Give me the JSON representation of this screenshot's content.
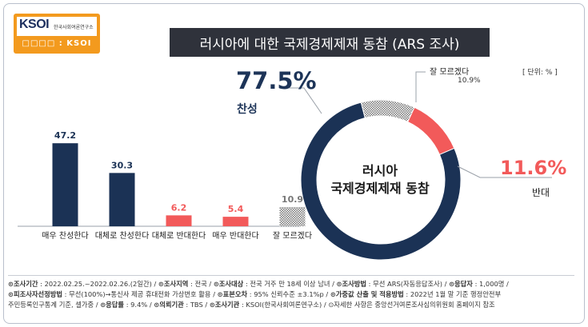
{
  "logo": {
    "mark": "KSOI",
    "org_name": "한국사회여론연구소",
    "bottom": "□□□□ : KSOI"
  },
  "title": "러시아에 대한 국제경제제재 동참 (ARS 조사)",
  "unit": "[ 단위: % ]",
  "colors": {
    "navy": "#1b3255",
    "red": "#f25a5a",
    "gray": "#9a9a9a",
    "title_bg": "#2f323b",
    "accent": "#f39a1e"
  },
  "chart_data": [
    {
      "type": "bar",
      "categories": [
        "매우 찬성한다",
        "대체로 찬성한다",
        "대체로 반대한다",
        "매우 반대한다",
        "잘 모르겠다"
      ],
      "values": [
        47.2,
        30.3,
        6.2,
        5.4,
        10.9
      ],
      "value_labels": [
        "47.2",
        "30.3",
        "6.2",
        "5.4",
        "10.9"
      ],
      "bar_colors": [
        "#1b3255",
        "#1b3255",
        "#f25a5a",
        "#f25a5a",
        "hatched-gray"
      ],
      "ylim": [
        0,
        50
      ]
    },
    {
      "type": "pie",
      "center_label": [
        "러시아",
        "국제경제제재 동참"
      ],
      "slices": [
        {
          "name": "찬성",
          "value": 77.5,
          "label": "77.5%",
          "color": "#1b3255"
        },
        {
          "name": "반대",
          "value": 11.6,
          "label": "11.6%",
          "color": "#f25a5a"
        },
        {
          "name": "잘 모르겠다",
          "value": 10.9,
          "label": "10.9%",
          "color": "hatched-gray"
        }
      ]
    }
  ],
  "footer": {
    "line1": [
      {
        "k": "⊙조사기간",
        "v": " : 2022.02.25.~2022.02.26.(2일간)  /  "
      },
      {
        "k": "⊙조사지역",
        "v": " : 전국  /  "
      },
      {
        "k": "⊙조사대상",
        "v": " : 전국 거주 만 18세 이상 남녀  /  "
      },
      {
        "k": "⊙조사방법",
        "v": " : 무선 ARS(자동응답조사)  /  "
      },
      {
        "k": "⊙응답자",
        "v": " : 1,000명  /"
      }
    ],
    "line2": [
      {
        "k": "⊙피조사자선정방법",
        "v": " : 무선(100%)→통신사 제공 휴대전화 가상번호 활용  /  "
      },
      {
        "k": "⊙표본오차",
        "v": " : 95% 신뢰수준 ±3.1%p  /  "
      },
      {
        "k": "⊙가중값 산출 및 적용방법",
        "v": " : 2022년 1월 말 기준 행정안전부"
      }
    ],
    "line3": [
      {
        "k": "",
        "v": "주민등록인구통계 기준, 셀가중  /  "
      },
      {
        "k": "⊙응답률",
        "v": " : 9.4%  /  "
      },
      {
        "k": "⊙의뢰기관",
        "v": " : TBS  /  "
      },
      {
        "k": "⊙조사기관",
        "v": " : KSOI(한국사회여론연구소)  /  "
      },
      {
        "k": "",
        "v": "⊙자세한 사항은 중앙선거여론조사심의위원회 홈페이지 참조"
      }
    ]
  }
}
